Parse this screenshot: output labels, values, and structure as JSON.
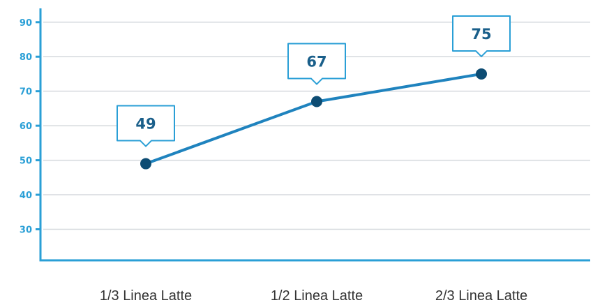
{
  "chart_data": {
    "type": "line",
    "categories": [
      "1/3 Linea Latte",
      "1/2 Linea Latte",
      "2/3 Linea Latte"
    ],
    "values": [
      49,
      67,
      75
    ],
    "data_labels": [
      "49",
      "67",
      "75"
    ],
    "title": "",
    "xlabel": "",
    "ylabel": "",
    "ylim": [
      21,
      94
    ],
    "yticks": [
      30,
      40,
      50,
      60,
      70,
      80,
      90
    ],
    "ytick_labels": [
      "30",
      "40",
      "50",
      "60",
      "70",
      "80",
      "90"
    ],
    "grid": true,
    "legend": "none"
  },
  "colors": {
    "axis": "#2a9fd6",
    "line": "#1f83be",
    "marker": "#0d4c73",
    "label_text": "#1a5f8a",
    "label_border": "#2a9fd6",
    "grid": "#d5d9dd",
    "xtick_text": "#333333"
  }
}
